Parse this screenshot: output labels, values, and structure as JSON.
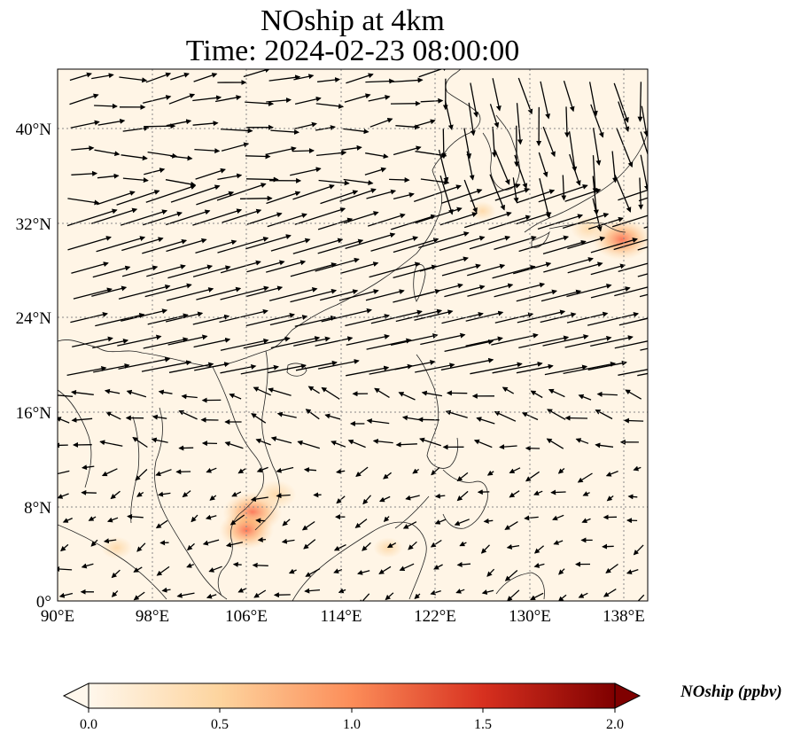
{
  "figure": {
    "title_line1": "NOship at 4km",
    "title_line2": "Time: 2024-02-23 08:00:00",
    "colors": {
      "zero": "#fff7ec",
      "low": "#fde4c4",
      "mid": "#fc8d59",
      "high": "#d7301f",
      "max": "#7f0000"
    }
  },
  "map": {
    "lon_ticks": [
      "90°E",
      "98°E",
      "106°E",
      "114°E",
      "122°E",
      "130°E",
      "138°E"
    ],
    "lat_ticks": [
      "0°",
      "8°N",
      "16°N",
      "24°N",
      "32°N",
      "40°N"
    ],
    "lon_range": [
      90,
      140
    ],
    "lat_range": [
      0,
      45
    ],
    "gridlines": true,
    "hotspots": [
      {
        "lon": 106.5,
        "lat": 7.5,
        "level": 0.9
      },
      {
        "lon": 106.0,
        "lat": 6.0,
        "level": 0.8
      },
      {
        "lon": 108.5,
        "lat": 9.0,
        "level": 0.5
      },
      {
        "lon": 137.8,
        "lat": 30.6,
        "level": 0.9
      },
      {
        "lon": 135.0,
        "lat": 31.5,
        "level": 0.4
      },
      {
        "lon": 95.0,
        "lat": 4.5,
        "level": 0.3
      },
      {
        "lon": 118.0,
        "lat": 4.5,
        "level": 0.25
      },
      {
        "lon": 126.0,
        "lat": 33.0,
        "level": 0.2
      }
    ]
  },
  "colorbar": {
    "label": "NOship (ppbv)",
    "ticks": [
      "0.0",
      "0.5",
      "1.0",
      "1.5",
      "2.0"
    ],
    "range": [
      0,
      2.0
    ],
    "extend": "both",
    "colormap": "OrRd"
  }
}
